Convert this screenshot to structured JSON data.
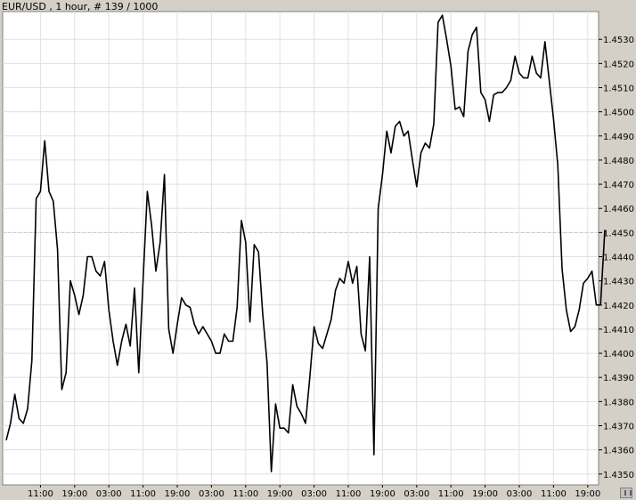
{
  "title": "EUR/USD , 1 hour, # 139 / 1000",
  "chart_data": {
    "type": "line",
    "title": "EUR/USD , 1 hour, # 139 / 1000",
    "xlabel": "",
    "ylabel": "",
    "ylim": [
      1.43455,
      1.45415
    ],
    "grid": true,
    "dashed_line_value": 1.445,
    "y_ticks": [
      "1.4530",
      "1.4520",
      "1.4510",
      "1.4500",
      "1.4490",
      "1.4480",
      "1.4470",
      "1.4460",
      "1.4450",
      "1.4440",
      "1.4430",
      "1.4420",
      "1.4410",
      "1.4400",
      "1.4390",
      "1.4380",
      "1.4370",
      "1.4360",
      "1.4350"
    ],
    "y_tick_values": [
      1.453,
      1.452,
      1.451,
      1.45,
      1.449,
      1.448,
      1.447,
      1.446,
      1.445,
      1.444,
      1.443,
      1.442,
      1.441,
      1.44,
      1.439,
      1.438,
      1.437,
      1.436,
      1.435
    ],
    "x_ticks": [
      "11:00",
      "19:00",
      "03:00",
      "11:00",
      "19:00",
      "03:00",
      "11:00",
      "19:00",
      "03:00",
      "11:00",
      "19:00",
      "03:00",
      "11:00",
      "19:00",
      "03:00",
      "11:00",
      "19:00"
    ],
    "x_tick_index": [
      8,
      16,
      24,
      32,
      40,
      48,
      56,
      64,
      72,
      80,
      88,
      96,
      104,
      112,
      120,
      128,
      136
    ],
    "series": [
      {
        "values": [
          1.4364,
          1.4371,
          1.4383,
          1.4373,
          1.4371,
          1.4377,
          1.4397,
          1.4464,
          1.4467,
          1.4488,
          1.4467,
          1.4463,
          1.4443,
          1.4385,
          1.4392,
          1.443,
          1.4424,
          1.4416,
          1.4424,
          1.444,
          1.444,
          1.4434,
          1.4432,
          1.4438,
          1.4418,
          1.4405,
          1.4395,
          1.4405,
          1.4412,
          1.4403,
          1.4427,
          1.4392,
          1.443,
          1.4467,
          1.4453,
          1.4434,
          1.4446,
          1.4474,
          1.441,
          1.44,
          1.4412,
          1.4423,
          1.442,
          1.4419,
          1.4412,
          1.4408,
          1.4411,
          1.4408,
          1.4405,
          1.44,
          1.44,
          1.4408,
          1.4405,
          1.4405,
          1.4419,
          1.4455,
          1.4446,
          1.4413,
          1.4445,
          1.4442,
          1.4416,
          1.4396,
          1.4351,
          1.4379,
          1.4369,
          1.4369,
          1.4367,
          1.4387,
          1.4378,
          1.4375,
          1.4371,
          1.439,
          1.4411,
          1.4404,
          1.4402,
          1.4408,
          1.4414,
          1.4426,
          1.4431,
          1.4429,
          1.4438,
          1.4429,
          1.4436,
          1.4408,
          1.4401,
          1.444,
          1.4358,
          1.446,
          1.4474,
          1.4492,
          1.4483,
          1.4494,
          1.4496,
          1.449,
          1.4492,
          1.448,
          1.4469,
          1.4483,
          1.4487,
          1.4485,
          1.4495,
          1.4537,
          1.454,
          1.453,
          1.4519,
          1.4501,
          1.4502,
          1.4498,
          1.4525,
          1.4532,
          1.4535,
          1.4508,
          1.4505,
          1.4496,
          1.4507,
          1.4508,
          1.4508,
          1.451,
          1.4513,
          1.4523,
          1.4516,
          1.4514,
          1.4514,
          1.4523,
          1.4516,
          1.4514,
          1.4529,
          1.4513,
          1.4497,
          1.4478,
          1.4435,
          1.4418,
          1.4409,
          1.4411,
          1.4418,
          1.4429,
          1.4431,
          1.4434,
          1.442,
          1.442,
          1.4451
        ]
      }
    ]
  }
}
